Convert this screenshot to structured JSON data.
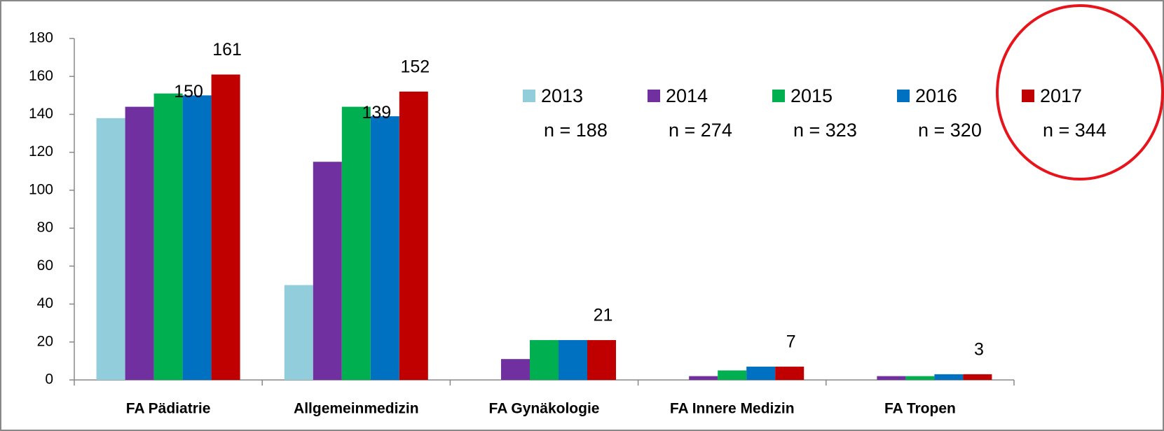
{
  "chart_data": {
    "type": "bar",
    "categories": [
      "FA Pädiatrie",
      "Allgemeinmedizin",
      "FA Gynäkologie",
      "FA Innere Medizin",
      "FA Tropen"
    ],
    "series": [
      {
        "name": "2013",
        "legend_note": "n = 188",
        "color": "#92cddc",
        "values": [
          138,
          50,
          0,
          0,
          0
        ],
        "value_labels": [
          null,
          null,
          null,
          null,
          null
        ]
      },
      {
        "name": "2014",
        "legend_note": "n = 274",
        "color": "#7030a0",
        "values": [
          144,
          115,
          11,
          2,
          2
        ],
        "value_labels": [
          null,
          null,
          null,
          null,
          null
        ]
      },
      {
        "name": "2015",
        "legend_note": "n = 323",
        "color": "#00b050",
        "values": [
          151,
          144,
          21,
          5,
          2
        ],
        "value_labels": [
          null,
          null,
          null,
          null,
          null
        ]
      },
      {
        "name": "2016",
        "legend_note": "n = 320",
        "color": "#0070c0",
        "values": [
          150,
          139,
          21,
          7,
          3
        ],
        "value_labels": [
          "150",
          "139",
          null,
          null,
          null
        ]
      },
      {
        "name": "2017",
        "legend_note": "n = 344",
        "color": "#c00000",
        "values": [
          161,
          152,
          21,
          7,
          3
        ],
        "value_labels": [
          "161",
          "152",
          "21",
          "7",
          "3"
        ]
      }
    ],
    "ylim": [
      0,
      180
    ],
    "yticks": [
      0,
      20,
      40,
      60,
      80,
      100,
      120,
      140,
      160,
      180
    ],
    "grid": false
  }
}
